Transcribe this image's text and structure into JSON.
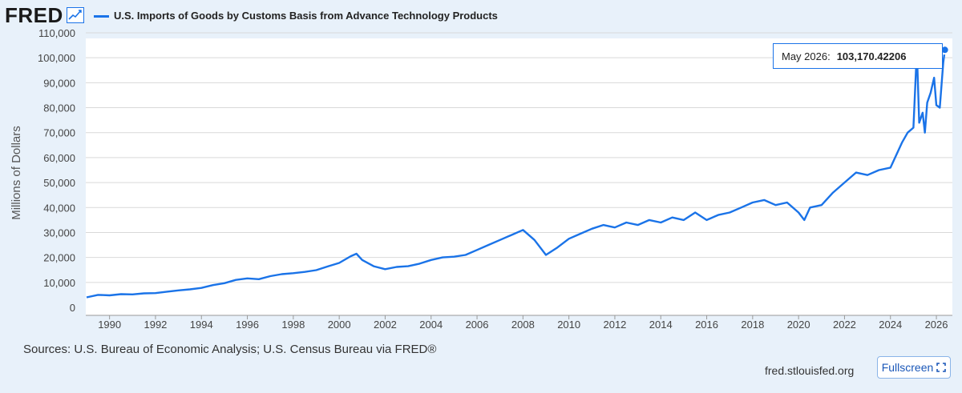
{
  "header": {
    "logo": "FRED",
    "logo_icon": "trend-chart-icon",
    "series_title": "U.S. Imports of Goods by Customs Basis from Advance Technology Products"
  },
  "tooltip": {
    "date": "May 2026:",
    "value": "103,170.42206"
  },
  "footer": {
    "source": "Sources: U.S. Bureau of Economic Analysis; U.S. Census Bureau via FRED®",
    "site": "fred.stlouisfed.org",
    "fullscreen_label": "Fullscreen",
    "fullscreen_icon": "expand-icon"
  },
  "colors": {
    "line": "#1a73e8",
    "background": "#e8f1fa",
    "plot_background": "#ffffff",
    "grid": "#d9d9d9"
  },
  "chart_data": {
    "type": "line",
    "title": "U.S. Imports of Goods by Customs Basis from Advance Technology Products",
    "xlabel": "",
    "ylabel": "Millions of Dollars",
    "ylim": [
      0,
      110000
    ],
    "yticks": [
      "0",
      "10,000",
      "20,000",
      "30,000",
      "40,000",
      "50,000",
      "60,000",
      "70,000",
      "80,000",
      "90,000",
      "100,000",
      "110,000"
    ],
    "xticks": [
      "1990",
      "1992",
      "1994",
      "1996",
      "1998",
      "2000",
      "2002",
      "2004",
      "2006",
      "2008",
      "2010",
      "2012",
      "2014",
      "2016",
      "2018",
      "2020",
      "2022",
      "2024",
      "2026"
    ],
    "xlim": [
      1989.0,
      2026.5
    ],
    "grid": "horizontal",
    "series": [
      {
        "x": [
          1989.0,
          1989.5,
          1990.0,
          1990.5,
          1991.0,
          1991.5,
          1992.0,
          1992.5,
          1993.0,
          1993.5,
          1994.0,
          1994.5,
          1995.0,
          1995.5,
          1996.0,
          1996.5,
          1997.0,
          1997.5,
          1998.0,
          1998.5,
          1999.0,
          1999.5,
          2000.0,
          2000.5,
          2000.75,
          2001.0,
          2001.5,
          2002.0,
          2002.5,
          2003.0,
          2003.5,
          2004.0,
          2004.5,
          2005.0,
          2005.5,
          2006.0,
          2006.5,
          2007.0,
          2007.5,
          2008.0,
          2008.5,
          2009.0,
          2009.5,
          2010.0,
          2010.5,
          2011.0,
          2011.5,
          2012.0,
          2012.5,
          2013.0,
          2013.5,
          2014.0,
          2014.5,
          2015.0,
          2015.5,
          2016.0,
          2016.5,
          2017.0,
          2017.5,
          2018.0,
          2018.5,
          2019.0,
          2019.5,
          2020.0,
          2020.25,
          2020.5,
          2021.0,
          2021.5,
          2022.0,
          2022.5,
          2023.0,
          2023.5,
          2024.0,
          2024.5,
          2024.75,
          2025.0,
          2025.15,
          2025.25,
          2025.4,
          2025.5,
          2025.6,
          2025.75,
          2025.9,
          2026.0,
          2026.15,
          2026.3,
          2026.37
        ],
        "values": [
          4000,
          5000,
          4800,
          5300,
          5200,
          5600,
          5700,
          6300,
          6800,
          7200,
          7800,
          8900,
          9700,
          11000,
          11600,
          11300,
          12500,
          13300,
          13700,
          14200,
          14900,
          16400,
          17800,
          20500,
          21500,
          19000,
          16500,
          15300,
          16200,
          16500,
          17500,
          19000,
          20000,
          20300,
          21000,
          23000,
          25000,
          27000,
          29000,
          31000,
          27000,
          21000,
          24000,
          27500,
          29500,
          31500,
          33000,
          32000,
          34000,
          33000,
          35000,
          34000,
          36000,
          35000,
          38000,
          35000,
          37000,
          38000,
          40000,
          42000,
          43000,
          41000,
          42000,
          38000,
          35000,
          40000,
          41000,
          46000,
          50000,
          54000,
          53000,
          55000,
          56000,
          66000,
          70000,
          72000,
          103000,
          74000,
          78000,
          70000,
          82000,
          86000,
          92000,
          81000,
          80000,
          98000,
          103170
        ]
      }
    ]
  }
}
